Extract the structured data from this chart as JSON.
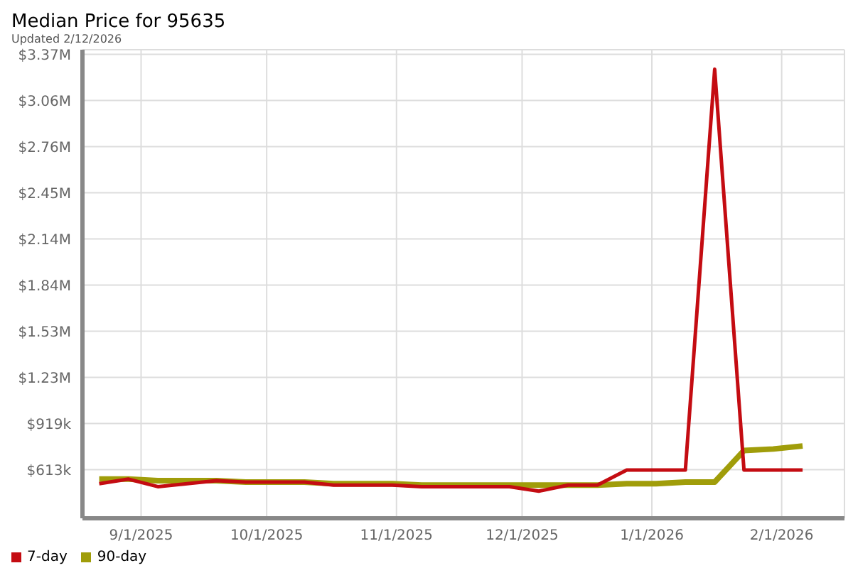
{
  "chart_data": {
    "type": "line",
    "title": "Median Price for 95635",
    "subtitle": "Updated 2/12/2026",
    "x": [
      "2025-08-22",
      "2025-08-29",
      "2025-09-05",
      "2025-09-12",
      "2025-09-19",
      "2025-09-26",
      "2025-10-03",
      "2025-10-10",
      "2025-10-17",
      "2025-10-24",
      "2025-10-31",
      "2025-11-07",
      "2025-11-14",
      "2025-11-21",
      "2025-11-28",
      "2025-12-05",
      "2025-12-12",
      "2025-12-19",
      "2025-12-26",
      "2026-01-02",
      "2026-01-09",
      "2026-01-16",
      "2026-01-23",
      "2026-01-30",
      "2026-02-06"
    ],
    "series": [
      {
        "name": "7-day",
        "color": "#c40c12",
        "values": [
          520000,
          550000,
          500000,
          520000,
          540000,
          530000,
          530000,
          530000,
          510000,
          510000,
          510000,
          500000,
          500000,
          500000,
          500000,
          470000,
          510000,
          510000,
          610000,
          610000,
          610000,
          3270000,
          610000,
          610000,
          610000
        ]
      },
      {
        "name": "90-day",
        "color": "#a09d0a",
        "values": [
          550000,
          550000,
          540000,
          540000,
          540000,
          530000,
          530000,
          530000,
          520000,
          520000,
          520000,
          510000,
          510000,
          510000,
          510000,
          510000,
          510000,
          510000,
          520000,
          520000,
          530000,
          530000,
          740000,
          750000,
          770000
        ]
      }
    ],
    "xlim": [
      "2025-08-18",
      "2026-02-16"
    ],
    "xticks": [
      {
        "value": "2025-09-01",
        "label": "9/1/2025"
      },
      {
        "value": "2025-10-01",
        "label": "10/1/2025"
      },
      {
        "value": "2025-11-01",
        "label": "11/1/2025"
      },
      {
        "value": "2025-12-01",
        "label": "12/1/2025"
      },
      {
        "value": "2026-01-01",
        "label": "1/1/2026"
      },
      {
        "value": "2026-02-01",
        "label": "2/1/2026"
      }
    ],
    "ylim": [
      290000,
      3400000
    ],
    "yticks": [
      {
        "value": 612600,
        "label": "$613k"
      },
      {
        "value": 918900,
        "label": "$919k"
      },
      {
        "value": 1225200,
        "label": "$1.23M"
      },
      {
        "value": 1531500,
        "label": "$1.53M"
      },
      {
        "value": 1837800,
        "label": "$1.84M"
      },
      {
        "value": 2144100,
        "label": "$2.14M"
      },
      {
        "value": 2450400,
        "label": "$2.45M"
      },
      {
        "value": 2756700,
        "label": "$2.76M"
      },
      {
        "value": 3063000,
        "label": "$3.06M"
      },
      {
        "value": 3369300,
        "label": "$3.37M"
      }
    ],
    "grid": true,
    "legend": "bottom left"
  }
}
